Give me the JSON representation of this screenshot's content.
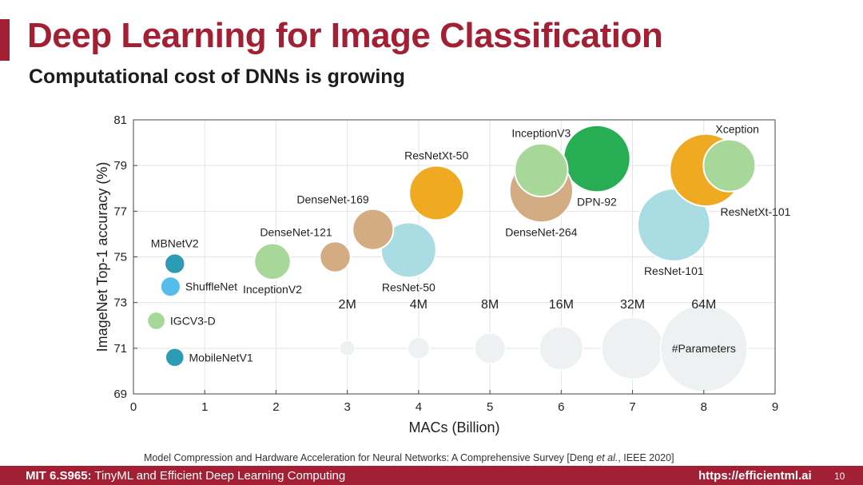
{
  "slide": {
    "title": "Deep Learning for Image Classification",
    "subtitle": "Computational cost of DNNs is growing",
    "citation_pre": "Model Compression and Hardware Acceleration for Neural Networks: A Comprehensive Survey [Deng ",
    "citation_em": "et al.",
    "citation_post": ", IEEE 2020]",
    "footer_course": "MIT 6.S965:",
    "footer_course_title": " TinyML and Efficient Deep Learning Computing",
    "footer_url": "https://efficientml.ai",
    "page_number": "10",
    "accent_color": "#a31f34"
  },
  "chart_data": {
    "type": "scatter",
    "variant": "bubble",
    "xlabel": "MACs (Billion)",
    "ylabel": "ImageNet Top-1 accuracy (%)",
    "xlim": [
      0,
      9
    ],
    "ylim": [
      69,
      81
    ],
    "xticks": [
      0,
      1,
      2,
      3,
      4,
      5,
      6,
      7,
      8,
      9
    ],
    "yticks": [
      69,
      71,
      73,
      75,
      77,
      79,
      81
    ],
    "grid": true,
    "size_encoding": "#Parameters",
    "points": [
      {
        "name": "MBNetV2",
        "x": 0.58,
        "y": 74.7,
        "params_m": 3.5,
        "color": "#2e9bb5",
        "label_pos": "above"
      },
      {
        "name": "ShuffleNet",
        "x": 0.52,
        "y": 73.7,
        "params_m": 3.4,
        "color": "#56bdea",
        "label_pos": "right"
      },
      {
        "name": "IGCV3-D",
        "x": 0.32,
        "y": 72.2,
        "params_m": 2.8,
        "color": "#a8d79a",
        "label_pos": "right"
      },
      {
        "name": "MobileNetV1",
        "x": 0.58,
        "y": 70.6,
        "params_m": 3.0,
        "color": "#2e9bb5",
        "label_pos": "right"
      },
      {
        "name": "InceptionV2",
        "x": 1.95,
        "y": 74.8,
        "params_m": 11.2,
        "color": "#a8d79a",
        "label_pos": "below"
      },
      {
        "name": "DenseNet-121",
        "x": 2.83,
        "y": 75.0,
        "params_m": 8.0,
        "color": "#d3ac84",
        "label_pos": "above-left"
      },
      {
        "name": "DenseNet-169",
        "x": 3.36,
        "y": 76.2,
        "params_m": 14.1,
        "color": "#d3ac84",
        "label_pos": "above-left"
      },
      {
        "name": "ResNet-50",
        "x": 3.86,
        "y": 75.3,
        "params_m": 25.6,
        "color": "#a9dce3",
        "label_pos": "below"
      },
      {
        "name": "ResNetXt-50",
        "x": 4.25,
        "y": 77.8,
        "params_m": 25.0,
        "color": "#f0aa22",
        "label_pos": "above"
      },
      {
        "name": "DenseNet-264",
        "x": 5.72,
        "y": 77.9,
        "params_m": 34.0,
        "color": "#d3ac84",
        "label_pos": "below"
      },
      {
        "name": "InceptionV3",
        "x": 5.72,
        "y": 78.8,
        "params_m": 23.8,
        "color": "#a8d79a",
        "label_pos": "above"
      },
      {
        "name": "DPN-92",
        "x": 6.5,
        "y": 79.3,
        "params_m": 37.7,
        "color": "#27ae54",
        "label_pos": "below"
      },
      {
        "name": "ResNet-101",
        "x": 7.58,
        "y": 76.4,
        "params_m": 44.5,
        "color": "#a9dce3",
        "label_pos": "below"
      },
      {
        "name": "ResNetXt-101",
        "x": 8.03,
        "y": 78.8,
        "params_m": 44.2,
        "color": "#f0aa22",
        "label_pos": "below-right"
      },
      {
        "name": "Xception",
        "x": 8.36,
        "y": 79.0,
        "params_m": 22.9,
        "color": "#a8d79a",
        "label_pos": "above-right"
      }
    ],
    "size_legend": {
      "title": "#Parameters",
      "y": 71,
      "color": "#eef1f1",
      "items": [
        {
          "label": "2M",
          "x": 3,
          "params_m": 2
        },
        {
          "label": "4M",
          "x": 4,
          "params_m": 4
        },
        {
          "label": "8M",
          "x": 5,
          "params_m": 8
        },
        {
          "label": "16M",
          "x": 6,
          "params_m": 16
        },
        {
          "label": "32M",
          "x": 7,
          "params_m": 32
        },
        {
          "label": "64M",
          "x": 8,
          "params_m": 64
        }
      ]
    }
  }
}
